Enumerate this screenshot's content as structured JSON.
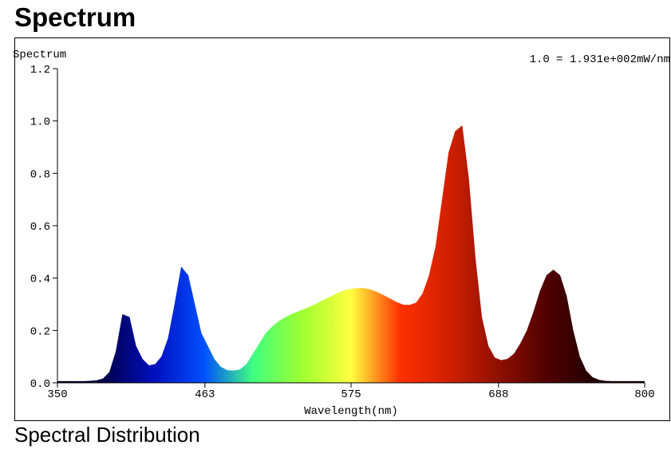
{
  "chart_data": {
    "type": "area",
    "title": "Spectrum",
    "ylabel": "Spectrum",
    "xlabel": "Wavelength(nm)",
    "annotation": "1.0 = 1.931e+002mW/nm",
    "caption": "Spectral Distribution",
    "xlim": [
      350,
      800
    ],
    "xticks": [
      350,
      463,
      575,
      688,
      800
    ],
    "ylim": [
      0,
      1.2
    ],
    "yticks": [
      {
        "value": 0,
        "label": "0.0"
      },
      0.2,
      0.4,
      0.6,
      0.8,
      {
        "value": 1,
        "label": "1.0"
      },
      1.2
    ],
    "grid": false,
    "fill_colors": [
      "#000010",
      "#000050",
      "#0010c0",
      "#0050ff",
      "#40ff80",
      "#a0ff30",
      "#ffff40",
      "#ff3000",
      "#d02000",
      "#901000",
      "#500000",
      "#200000",
      "#100000"
    ],
    "x": [
      350,
      355,
      360,
      365,
      370,
      375,
      380,
      385,
      390,
      395,
      400,
      405,
      410,
      415,
      420,
      425,
      430,
      435,
      440,
      445,
      450,
      455,
      460,
      465,
      470,
      475,
      480,
      485,
      490,
      495,
      500,
      505,
      510,
      515,
      520,
      525,
      530,
      535,
      540,
      545,
      550,
      555,
      560,
      565,
      570,
      575,
      580,
      585,
      590,
      595,
      600,
      605,
      610,
      615,
      620,
      625,
      630,
      635,
      640,
      645,
      650,
      655,
      660,
      665,
      670,
      675,
      680,
      685,
      690,
      695,
      700,
      705,
      710,
      715,
      720,
      725,
      730,
      735,
      740,
      745,
      750,
      755,
      760,
      765,
      770,
      775,
      780,
      785,
      790,
      795,
      800
    ],
    "values": [
      0.005,
      0.005,
      0.005,
      0.005,
      0.005,
      0.006,
      0.008,
      0.015,
      0.04,
      0.12,
      0.26,
      0.25,
      0.14,
      0.09,
      0.065,
      0.07,
      0.1,
      0.17,
      0.3,
      0.44,
      0.41,
      0.3,
      0.19,
      0.14,
      0.09,
      0.06,
      0.047,
      0.045,
      0.05,
      0.07,
      0.11,
      0.15,
      0.19,
      0.215,
      0.235,
      0.25,
      0.262,
      0.272,
      0.282,
      0.293,
      0.305,
      0.318,
      0.33,
      0.342,
      0.352,
      0.358,
      0.36,
      0.36,
      0.355,
      0.345,
      0.333,
      0.32,
      0.306,
      0.297,
      0.296,
      0.305,
      0.34,
      0.41,
      0.52,
      0.7,
      0.88,
      0.96,
      0.98,
      0.78,
      0.48,
      0.25,
      0.14,
      0.095,
      0.085,
      0.09,
      0.11,
      0.15,
      0.2,
      0.27,
      0.35,
      0.41,
      0.43,
      0.41,
      0.33,
      0.2,
      0.1,
      0.045,
      0.02,
      0.01,
      0.006,
      0.005,
      0.005,
      0.005,
      0.005,
      0.005,
      0.005
    ]
  }
}
